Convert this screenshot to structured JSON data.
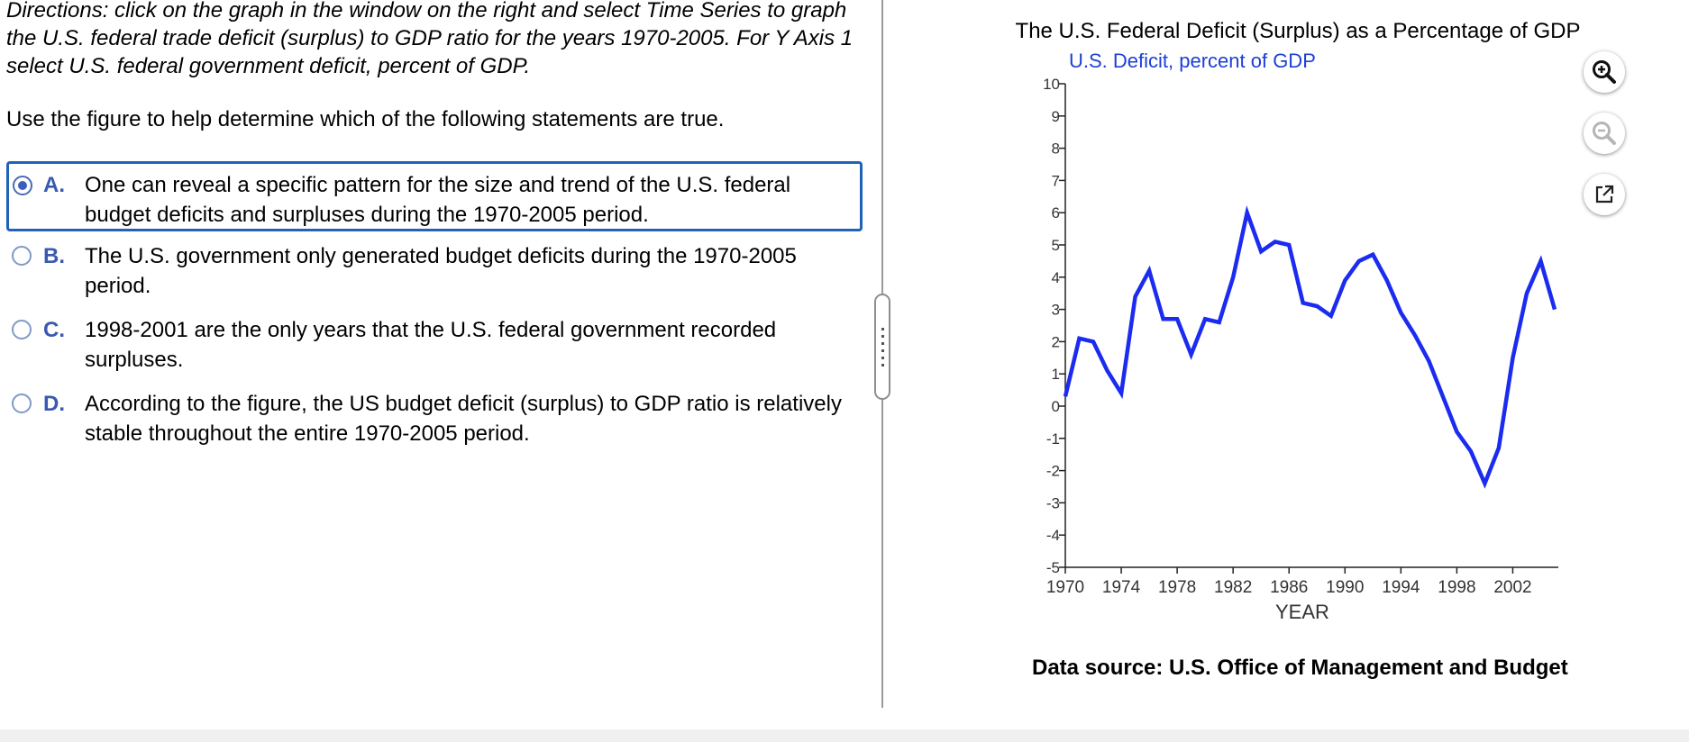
{
  "question": {
    "directions": "Directions: click on the graph in the window on the right and select Time Series to graph the U.S. federal trade deficit (surplus) to GDP ratio for the years 1970-2005. For Y Axis 1 select U.S. federal government deficit, percent of GDP.",
    "prompt": "Use the figure to help determine which of the following statements are true.",
    "options": [
      {
        "letter": "A.",
        "text": "One can reveal a specific pattern for the size and trend of the U.S. federal budget deficits and surpluses during the 1970-2005 period.",
        "selected": true
      },
      {
        "letter": "B.",
        "text": "The U.S. government only generated budget deficits during the 1970-2005 period.",
        "selected": false
      },
      {
        "letter": "C.",
        "text": "1998-2001 are the only years that the U.S. federal government recorded surpluses.",
        "selected": false
      },
      {
        "letter": "D.",
        "text": "According to the figure, the US budget deficit (surplus) to GDP ratio is relatively stable throughout the entire 1970-2005 period.",
        "selected": false
      }
    ]
  },
  "tools": {
    "zoom_in_icon": "zoom-in-icon",
    "zoom_out_icon": "zoom-out-icon",
    "popout_icon": "external-link-icon"
  },
  "chart_data": {
    "type": "line",
    "title": "The U.S. Federal Deficit (Surplus) as a Percentage of GDP",
    "series_label": "U.S. Deficit, percent of GDP",
    "xlabel": "YEAR",
    "source": "Data source: U.S. Office of Management and Budget",
    "ylim": [
      -5,
      10
    ],
    "y_ticks": [
      10,
      9,
      8,
      7,
      6,
      5,
      4,
      3,
      2,
      1,
      0,
      -1,
      -2,
      -3,
      -4,
      -5
    ],
    "xlim": [
      1970,
      2005
    ],
    "x_ticks": [
      1970,
      1974,
      1978,
      1982,
      1986,
      1990,
      1994,
      1998,
      2002
    ],
    "series_color": "#1b2bf0",
    "series": [
      {
        "x": [
          1970,
          1971,
          1972,
          1973,
          1974,
          1975,
          1976,
          1977,
          1978,
          1979,
          1980,
          1981,
          1982,
          1983,
          1984,
          1985,
          1986,
          1987,
          1988,
          1989,
          1990,
          1991,
          1992,
          1993,
          1994,
          1995,
          1996,
          1997,
          1998,
          1999,
          2000,
          2001,
          2002,
          2003,
          2004,
          2005
        ],
        "values": [
          0.3,
          2.1,
          2.0,
          1.1,
          0.4,
          3.4,
          4.2,
          2.7,
          2.7,
          1.6,
          2.7,
          2.6,
          4.0,
          6.0,
          4.8,
          5.1,
          5.0,
          3.2,
          3.1,
          2.8,
          3.9,
          4.5,
          4.7,
          3.9,
          2.9,
          2.2,
          1.4,
          0.3,
          -0.8,
          -1.4,
          -2.4,
          -1.3,
          1.5,
          3.5,
          4.5,
          3.0
        ]
      }
    ]
  }
}
